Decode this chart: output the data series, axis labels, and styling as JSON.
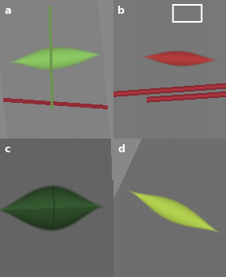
{
  "figsize": [
    2.79,
    3.42
  ],
  "dpi": 100,
  "panels": [
    "a",
    "b",
    "c",
    "d"
  ],
  "label_color": "white",
  "label_fontsize": 9,
  "panel_bg_a": [
    130,
    130,
    130
  ],
  "panel_bg_b": [
    120,
    120,
    120
  ],
  "panel_bg_c": [
    100,
    100,
    100
  ],
  "panel_bg_d": [
    110,
    110,
    110
  ],
  "leaf_a_color": [
    140,
    200,
    100
  ],
  "leaf_b_color": [
    180,
    60,
    60
  ],
  "leaf_c_color": [
    60,
    100,
    55
  ],
  "leaf_d_color": [
    180,
    210,
    80
  ],
  "stem_color": [
    160,
    50,
    60
  ]
}
